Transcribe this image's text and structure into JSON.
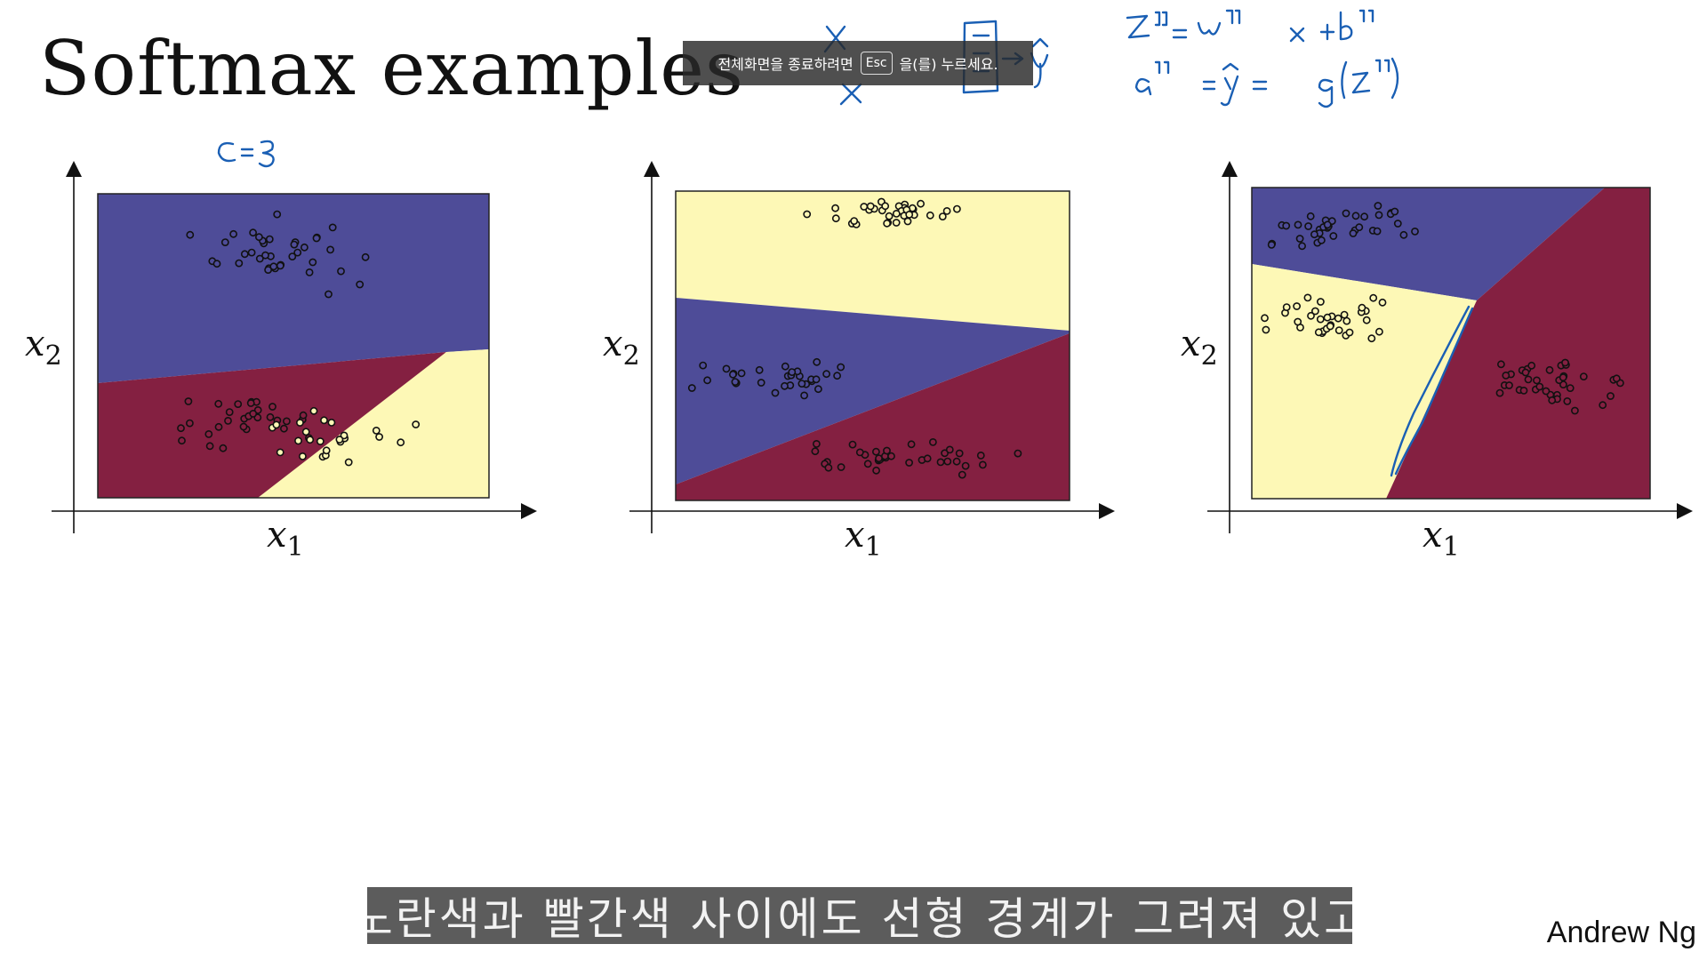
{
  "slide": {
    "title": "Softmax examples",
    "author": "Andrew Ng"
  },
  "annotations": {
    "class_count": "C=3",
    "eq1_lhs": "z",
    "eq1_rhs": "= W x + b",
    "eq2": "a = ŷ = g(z)",
    "diagram": "x₁ x₂ → ŷ",
    "superscript": "[L]"
  },
  "fullscreen_banner": {
    "text_before": "전체화면을 종료하려면",
    "key": "Esc",
    "text_after": "을(를) 누르세요."
  },
  "subtitle": {
    "text": "노란색과 빨간색 사이에도 선형 경계가 그려져 있고"
  },
  "colors": {
    "blue_region": "#4e4c98",
    "red_region": "#842041",
    "yellow_region": "#fdf8b6",
    "ink": "#1a5fb4"
  },
  "chart_data": [
    {
      "type": "scatter",
      "xlabel": "x1",
      "ylabel": "x2",
      "classes": [
        "blue",
        "red",
        "yellow"
      ],
      "grid": false,
      "legend": "none"
    },
    {
      "type": "scatter",
      "xlabel": "x1",
      "ylabel": "x2",
      "classes": [
        "blue",
        "red",
        "yellow"
      ],
      "grid": false,
      "legend": "none"
    },
    {
      "type": "scatter",
      "xlabel": "x1",
      "ylabel": "x2",
      "classes": [
        "blue",
        "red",
        "yellow"
      ],
      "grid": false,
      "legend": "none"
    }
  ]
}
